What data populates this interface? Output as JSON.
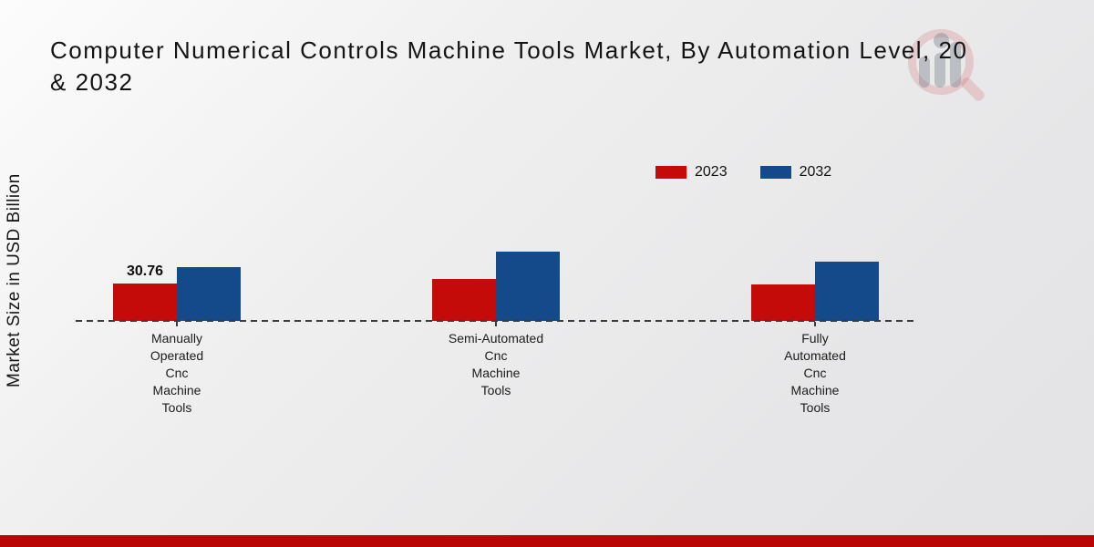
{
  "header": {
    "title_line1": "Computer Numerical Controls Machine Tools Market, By Automation Level, 20",
    "title_line2": "& 2032"
  },
  "watermark": {
    "icon": "market-research-logo"
  },
  "legend": {
    "position": "top-right",
    "items": [
      {
        "label": "2023",
        "color": "#c50a0a"
      },
      {
        "label": "2032",
        "color": "#14498a"
      }
    ]
  },
  "chart_data": {
    "type": "bar",
    "title": "Computer Numerical Controls Machine Tools Market, By Automation Level, 20… & 2032",
    "ylabel": "Market Size in USD Billion",
    "xlabel": "",
    "grid": false,
    "baseline_style": "dashed",
    "categories": [
      "Manually Operated Cnc Machine Tools",
      "Semi-Automated Cnc Machine Tools",
      "Fully Automated Cnc Machine Tools"
    ],
    "categories_wrapped": [
      "Manually\nOperated\nCnc\nMachine\nTools",
      "Semi-Automated\nCnc\nMachine\nTools",
      "Fully\nAutomated\nCnc\nMachine\nTools"
    ],
    "series": [
      {
        "name": "2023",
        "color": "#c50a0a",
        "values": [
          30.76,
          34.5,
          30.0
        ]
      },
      {
        "name": "2032",
        "color": "#14498a",
        "values": [
          44.3,
          57.0,
          48.8
        ]
      }
    ],
    "value_labels": [
      {
        "series": "2023",
        "category_index": 0,
        "text": "30.76"
      }
    ]
  },
  "footer": {
    "bar_color": "#ba0505"
  }
}
